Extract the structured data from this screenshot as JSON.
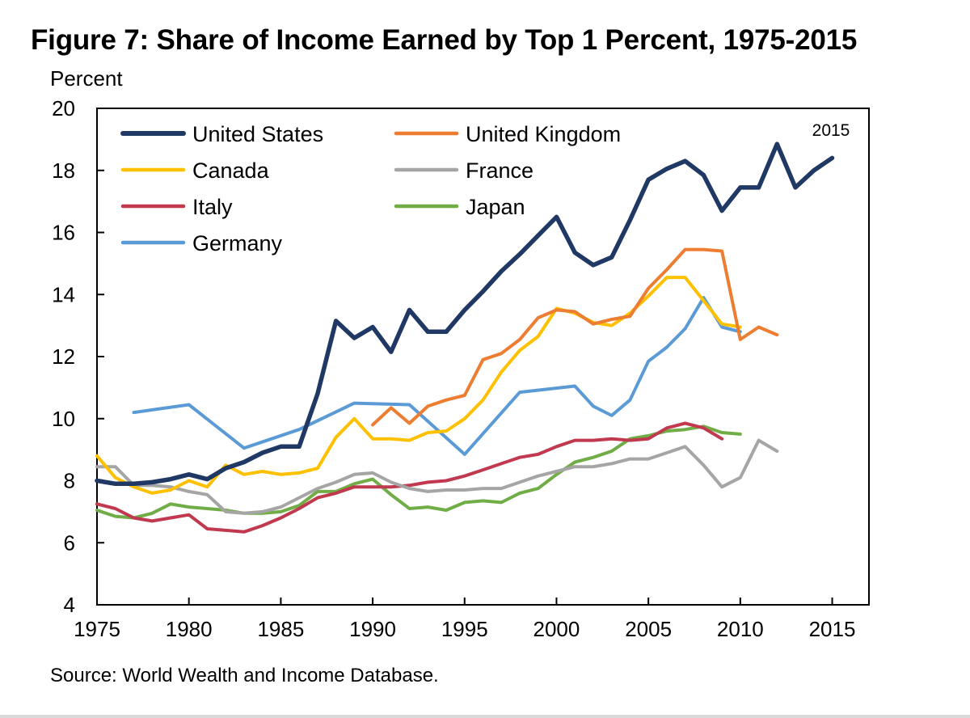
{
  "chart_data": {
    "type": "line",
    "title": "Figure 7: Share of Income Earned by Top 1 Percent, 1975-2015",
    "ylabel": "Percent",
    "xlabel": "",
    "annotation": "2015",
    "source": "Source: World Wealth and Income Database.",
    "xlim": [
      1975,
      2017
    ],
    "ylim": [
      4,
      20
    ],
    "xticks": [
      1975,
      1980,
      1985,
      1990,
      1995,
      2000,
      2005,
      2010,
      2015
    ],
    "yticks": [
      4,
      6,
      8,
      10,
      12,
      14,
      16,
      18,
      20
    ],
    "grid": false,
    "legend_position": "top-left",
    "series": [
      {
        "name": "United States",
        "color": "#203864",
        "x": [
          1975,
          1976,
          1977,
          1978,
          1979,
          1980,
          1981,
          1982,
          1983,
          1984,
          1985,
          1986,
          1987,
          1988,
          1989,
          1990,
          1991,
          1992,
          1993,
          1994,
          1995,
          1996,
          1997,
          1998,
          1999,
          2000,
          2001,
          2002,
          2003,
          2004,
          2005,
          2006,
          2007,
          2008,
          2009,
          2010,
          2011,
          2012,
          2013,
          2014,
          2015
        ],
        "y": [
          8.0,
          7.9,
          7.9,
          7.95,
          8.05,
          8.2,
          8.05,
          8.4,
          8.6,
          8.9,
          9.1,
          9.1,
          10.8,
          13.15,
          12.6,
          12.95,
          12.15,
          13.5,
          12.8,
          12.8,
          13.5,
          14.1,
          14.75,
          15.3,
          15.9,
          16.5,
          15.35,
          14.95,
          15.2,
          16.4,
          17.7,
          18.05,
          18.3,
          17.85,
          16.7,
          17.45,
          17.45,
          18.85,
          17.45,
          18.0,
          18.4
        ]
      },
      {
        "name": "United Kingdom",
        "color": "#ED7D31",
        "x": [
          1990,
          1991,
          1992,
          1993,
          1994,
          1995,
          1996,
          1997,
          1998,
          1999,
          2000,
          2001,
          2002,
          2003,
          2004,
          2005,
          2006,
          2007,
          2008,
          2009,
          2010,
          2011,
          2012
        ],
        "y": [
          9.8,
          10.35,
          9.85,
          10.4,
          10.6,
          10.75,
          11.9,
          12.1,
          12.55,
          13.25,
          13.5,
          13.45,
          13.05,
          13.2,
          13.3,
          14.2,
          14.8,
          15.45,
          15.45,
          15.4,
          12.55,
          12.95,
          12.7
        ]
      },
      {
        "name": "Canada",
        "color": "#FFC000",
        "x": [
          1975,
          1976,
          1977,
          1978,
          1979,
          1980,
          1981,
          1982,
          1983,
          1984,
          1985,
          1986,
          1987,
          1988,
          1989,
          1990,
          1991,
          1992,
          1993,
          1994,
          1995,
          1996,
          1997,
          1998,
          1999,
          2000,
          2001,
          2002,
          2003,
          2004,
          2005,
          2006,
          2007,
          2008,
          2009,
          2010
        ],
        "y": [
          8.8,
          8.1,
          7.8,
          7.6,
          7.7,
          8.0,
          7.8,
          8.5,
          8.2,
          8.3,
          8.2,
          8.25,
          8.4,
          9.4,
          10.0,
          9.35,
          9.35,
          9.3,
          9.55,
          9.6,
          10.0,
          10.6,
          11.5,
          12.2,
          12.65,
          13.55,
          13.4,
          13.1,
          13.0,
          13.4,
          13.95,
          14.55,
          14.55,
          13.8,
          13.05,
          12.95
        ]
      },
      {
        "name": "France",
        "color": "#A5A5A5",
        "x": [
          1975,
          1976,
          1977,
          1978,
          1979,
          1980,
          1981,
          1982,
          1983,
          1984,
          1985,
          1986,
          1987,
          1988,
          1989,
          1990,
          1991,
          1992,
          1993,
          1994,
          1995,
          1996,
          1997,
          1998,
          1999,
          2000,
          2001,
          2002,
          2003,
          2004,
          2005,
          2006,
          2007,
          2008,
          2009,
          2010,
          2011,
          2012
        ],
        "y": [
          8.45,
          8.45,
          7.85,
          7.85,
          7.8,
          7.65,
          7.55,
          7.0,
          6.95,
          7.0,
          7.15,
          7.45,
          7.75,
          7.95,
          8.2,
          8.25,
          7.95,
          7.75,
          7.65,
          7.7,
          7.7,
          7.75,
          7.75,
          7.95,
          8.15,
          8.3,
          8.45,
          8.45,
          8.55,
          8.7,
          8.7,
          8.9,
          9.1,
          8.5,
          7.8,
          8.1,
          9.3,
          8.95
        ]
      },
      {
        "name": "Italy",
        "color": "#C0394F",
        "x": [
          1975,
          1976,
          1977,
          1978,
          1979,
          1980,
          1981,
          1982,
          1983,
          1984,
          1985,
          1986,
          1987,
          1988,
          1989,
          1990,
          1991,
          1992,
          1993,
          1994,
          1995,
          1996,
          1997,
          1998,
          1999,
          2000,
          2001,
          2002,
          2003,
          2004,
          2005,
          2006,
          2007,
          2008,
          2009
        ],
        "y": [
          7.25,
          7.1,
          6.8,
          6.7,
          6.8,
          6.9,
          6.45,
          6.4,
          6.35,
          6.55,
          6.8,
          7.1,
          7.45,
          7.6,
          7.8,
          7.8,
          7.8,
          7.85,
          7.95,
          8.0,
          8.15,
          8.35,
          8.55,
          8.75,
          8.85,
          9.1,
          9.3,
          9.3,
          9.35,
          9.3,
          9.35,
          9.7,
          9.85,
          9.7,
          9.35
        ]
      },
      {
        "name": "Japan",
        "color": "#70AD47",
        "x": [
          1975,
          1976,
          1977,
          1978,
          1979,
          1980,
          1981,
          1982,
          1983,
          1984,
          1985,
          1986,
          1987,
          1988,
          1989,
          1990,
          1991,
          1992,
          1993,
          1994,
          1995,
          1996,
          1997,
          1998,
          1999,
          2000,
          2001,
          2002,
          2003,
          2004,
          2005,
          2006,
          2007,
          2008,
          2009,
          2010
        ],
        "y": [
          7.05,
          6.85,
          6.8,
          6.95,
          7.25,
          7.15,
          7.1,
          7.05,
          6.95,
          6.95,
          7.0,
          7.2,
          7.65,
          7.65,
          7.9,
          8.05,
          7.55,
          7.1,
          7.15,
          7.05,
          7.3,
          7.35,
          7.3,
          7.6,
          7.75,
          8.2,
          8.6,
          8.75,
          8.95,
          9.35,
          9.45,
          9.6,
          9.65,
          9.75,
          9.55,
          9.5
        ]
      },
      {
        "name": "Germany",
        "color": "#5B9BD5",
        "x": [
          1977,
          1980,
          1983,
          1986,
          1989,
          1992,
          1995,
          1998,
          2001,
          2002,
          2003,
          2004,
          2005,
          2006,
          2007,
          2008,
          2009,
          2010
        ],
        "y": [
          10.2,
          10.45,
          9.05,
          9.65,
          10.5,
          10.45,
          8.85,
          10.85,
          11.05,
          10.4,
          10.1,
          10.6,
          11.85,
          12.3,
          12.9,
          13.9,
          12.95,
          12.8
        ]
      }
    ]
  }
}
